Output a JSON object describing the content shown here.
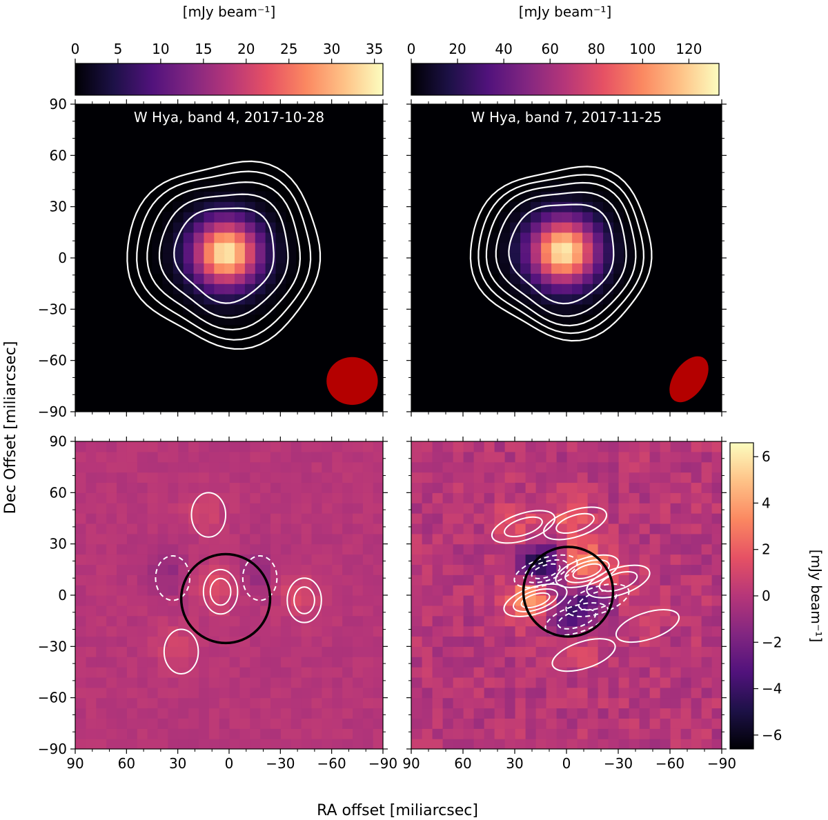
{
  "figure": {
    "xlabel": "RA offset [miliarcsec]",
    "ylabel": "Dec Offset [miliarcsec]"
  },
  "colors": {
    "cmap": [
      "#000004",
      "#1d1147",
      "#51127c",
      "#822681",
      "#b63679",
      "#e65164",
      "#fb8861",
      "#fec287",
      "#fcfdbf"
    ],
    "beam": "#b40000",
    "contour": "#ffffff",
    "star_circle": "#000000"
  },
  "chart_data": [
    {
      "type": "heatmap",
      "panel": "top-left",
      "title": "W Hya, band 4, 2017-10-28",
      "colorbar_label": "[mJy beam⁻¹]",
      "colorbar_range": [
        0,
        36
      ],
      "colorbar_ticks": [
        "0",
        "5",
        "10",
        "15",
        "20",
        "25",
        "30",
        "35"
      ],
      "colorbar_position": "top",
      "x_range": [
        90,
        -90
      ],
      "y_range": [
        -90,
        90
      ],
      "x_ticks": [],
      "y_ticks": [
        "90",
        "60",
        "30",
        "0",
        "−30",
        "−60",
        "−90"
      ],
      "peak_mJy": 35,
      "peak_center": [
        2,
        3
      ],
      "beam_ellipse": {
        "center": [
          -72,
          -72
        ],
        "major": 30,
        "minor": 28,
        "pa": 0
      }
    },
    {
      "type": "heatmap",
      "panel": "top-right",
      "title": "W Hya, band 7, 2017-11-25",
      "colorbar_label": "[mJy beam⁻¹]",
      "colorbar_range": [
        0,
        133
      ],
      "colorbar_ticks": [
        "0",
        "20",
        "40",
        "60",
        "80",
        "100",
        "120"
      ],
      "colorbar_position": "top",
      "x_range": [
        90,
        -90
      ],
      "y_range": [
        -90,
        90
      ],
      "x_ticks": [],
      "y_ticks": [],
      "peak_mJy": 128,
      "peak_center": [
        2,
        4
      ],
      "beam_ellipse": {
        "center": [
          -71,
          -71
        ],
        "major": 30,
        "minor": 18,
        "pa": 55
      }
    },
    {
      "type": "heatmap",
      "panel": "bottom-left",
      "title": "",
      "x_range": [
        90,
        -90
      ],
      "y_range": [
        -90,
        90
      ],
      "x_ticks": [
        "90",
        "60",
        "30",
        "0",
        "−30",
        "−60",
        "−90"
      ],
      "y_ticks": [
        "90",
        "60",
        "30",
        "0",
        "−30",
        "−60",
        "−90"
      ],
      "residual_features": [
        {
          "center": [
            5,
            2
          ],
          "amp": 1.5
        },
        {
          "center": [
            -44,
            -3
          ],
          "amp": 1.2
        },
        {
          "center": [
            28,
            -33
          ],
          "amp": 1.0
        },
        {
          "center": [
            12,
            47
          ],
          "amp": 0.8
        },
        {
          "center": [
            33,
            10
          ],
          "amp": -1.0
        },
        {
          "center": [
            -18,
            10
          ],
          "amp": -1.0
        }
      ],
      "star_circle": {
        "center": [
          2,
          -2
        ],
        "radius": 26
      }
    },
    {
      "type": "heatmap",
      "panel": "bottom-right",
      "title": "",
      "colorbar_label": "[mJy beam⁻¹]",
      "colorbar_range": [
        -6.6,
        6.6
      ],
      "colorbar_ticks": [
        "6",
        "4",
        "2",
        "0",
        "−2",
        "−4",
        "−6"
      ],
      "colorbar_position": "right",
      "x_range": [
        90,
        -90
      ],
      "y_range": [
        -90,
        90
      ],
      "x_ticks": [
        "90",
        "60",
        "30",
        "0",
        "−30",
        "−60",
        "−90"
      ],
      "y_ticks": [],
      "residual_features": [
        {
          "center": [
            18,
            -3
          ],
          "amp": 4.5
        },
        {
          "center": [
            -12,
            14
          ],
          "amp": 4.0
        },
        {
          "center": [
            -5,
            42
          ],
          "amp": 2.0
        },
        {
          "center": [
            25,
            40
          ],
          "amp": 1.5
        },
        {
          "center": [
            -30,
            8
          ],
          "amp": 1.2
        },
        {
          "center": [
            -47,
            -18
          ],
          "amp": 1.0
        },
        {
          "center": [
            -10,
            -35
          ],
          "amp": 1.0
        },
        {
          "center": [
            12,
            14
          ],
          "amp": -6.0
        },
        {
          "center": [
            -6,
            -14
          ],
          "amp": -3.0
        },
        {
          "center": [
            -18,
            -3
          ],
          "amp": -2.5
        }
      ],
      "star_circle": {
        "center": [
          -1,
          2
        ],
        "radius": 26
      }
    }
  ]
}
